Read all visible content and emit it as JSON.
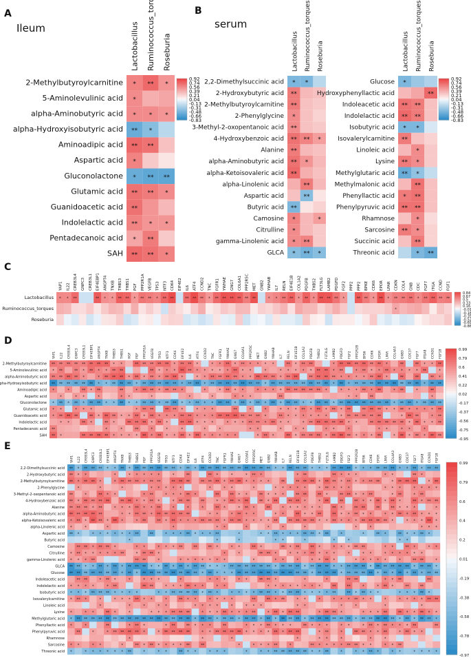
{
  "chart_data": [
    {
      "panel": "A",
      "title": "Ileum",
      "type": "heatmap",
      "columns": [
        "Lactobacillus",
        "Ruminococcus_torques",
        "Roseburia"
      ],
      "rows": [
        "2-Methylbutyroylcarnitine",
        "5-Aminolevulinic acid",
        "alpha-Aminobutyric acid",
        "alpha-Hydroxyisobutyric acid",
        "Aminoadipic acid",
        "Aspartic acid",
        "Gluconolactone",
        "Glutamic acid",
        "Guanidoacetic acid",
        "Indolelactic acid",
        "Pentadecanoic acid",
        "SAH"
      ],
      "values": [
        [
          0.65,
          0.8,
          0.55
        ],
        [
          0.6,
          0.4,
          0.45
        ],
        [
          0.6,
          0.6,
          0.55
        ],
        [
          -0.7,
          -0.55,
          -0.3
        ],
        [
          0.8,
          0.75,
          0.3
        ],
        [
          0.65,
          0.25,
          0.1
        ],
        [
          -0.7,
          -0.75,
          -0.75
        ],
        [
          0.75,
          0.7,
          0.6
        ],
        [
          0.75,
          0.55,
          0.35
        ],
        [
          0.65,
          0.55,
          0.55
        ],
        [
          0.45,
          0.7,
          0.25
        ],
        [
          0.8,
          0.75,
          0.65
        ]
      ],
      "stars": [
        [
          "*",
          "**",
          "*"
        ],
        [
          "*",
          "",
          ""
        ],
        [
          "*",
          "*",
          "*"
        ],
        [
          "**",
          "*",
          ""
        ],
        [
          "**",
          "**",
          ""
        ],
        [
          "*",
          "",
          ""
        ],
        [
          "*",
          "**",
          "**"
        ],
        [
          "**",
          "**",
          "*"
        ],
        [
          "**",
          "",
          ""
        ],
        [
          "**",
          "*",
          "*"
        ],
        [
          "*",
          "**",
          ""
        ],
        [
          "**",
          "**",
          "*"
        ]
      ],
      "colorbar": [
        "0.92",
        "0.74",
        "0.56",
        "0.39",
        "0.21",
        "0.04",
        "-0.13",
        "-0.31",
        "-0.48",
        "-0.66",
        "-0.83"
      ]
    },
    {
      "panel": "B",
      "title": "serum",
      "type": "heatmap",
      "columns": [
        "Lactobacillus",
        "Ruminococcus_torques",
        "Roseburia"
      ],
      "rows": [
        "2,2-Dimethylsuccinic acid",
        "2-Hydroxybutyric acid",
        "2-Methylbutyroylcarnitine",
        "2-Phenylglycine",
        "3-Methyl-2-oxopentanoic acid",
        "4-Hydroxybenzoic acid",
        "Alanine",
        "alpha-Aminobutyric acid",
        "alpha-Ketoisovaleric acid",
        "alpha-Linolenic acid",
        "Aspartic acid",
        "Butyric acid",
        "Camosine",
        "Citrulline",
        "gamma-Linolenic acid",
        "GLCA"
      ],
      "values": [
        [
          -0.6,
          -0.6,
          -0.3
        ],
        [
          0.7,
          0.35,
          0.3
        ],
        [
          0.7,
          0.3,
          0.25
        ],
        [
          0.6,
          0.3,
          0.2
        ],
        [
          0.6,
          0.3,
          0.25
        ],
        [
          0.75,
          0.65,
          0.5
        ],
        [
          0.7,
          0.35,
          0.3
        ],
        [
          0.75,
          0.55,
          0.35
        ],
        [
          0.8,
          0.4,
          0.3
        ],
        [
          0.4,
          0.7,
          0.35
        ],
        [
          0.3,
          -0.55,
          0.1
        ],
        [
          -0.6,
          0.1,
          0.2
        ],
        [
          0.65,
          0.35,
          0.5
        ],
        [
          0.6,
          0.35,
          0.25
        ],
        [
          0.6,
          0.65,
          0.25
        ],
        [
          -0.55,
          -0.65,
          -0.55
        ]
      ],
      "stars": [
        [
          "*",
          "*",
          ""
        ],
        [
          "**",
          "",
          ""
        ],
        [
          "**",
          "",
          ""
        ],
        [
          "*",
          "",
          ""
        ],
        [
          "**",
          "",
          ""
        ],
        [
          "**",
          "**",
          "*"
        ],
        [
          "**",
          "",
          ""
        ],
        [
          "**",
          "*",
          ""
        ],
        [
          "**",
          "",
          ""
        ],
        [
          "",
          "**",
          ""
        ],
        [
          "",
          "**",
          ""
        ],
        [
          "**",
          "",
          ""
        ],
        [
          "*",
          "",
          "*"
        ],
        [
          "*",
          "",
          ""
        ],
        [
          "*",
          "**",
          ""
        ],
        [
          "*",
          "**",
          "*"
        ]
      ]
    },
    {
      "panel": "B2",
      "type": "heatmap",
      "columns": [
        "Lactobacillus",
        "Ruminococcus_torques",
        "Roseburia"
      ],
      "rows": [
        "Glucose",
        "Hydroxyphenyllactic acid",
        "Indoleacetic acid",
        "Indolelactic acid",
        "Isobutyric acid",
        "Isovalerylcarnitine",
        "Linoleic acid",
        "Lysine",
        "Methylglutaric acid",
        "Methylmalonic acid",
        "Phenyllactic acid",
        "Phenylpyruvic acid",
        "Rhamnose",
        "Sarcosine",
        "Succinic acid",
        "Threonic acid"
      ],
      "values": [
        [
          -0.6,
          -0.45,
          -0.35
        ],
        [
          0.35,
          0.45,
          0.8
        ],
        [
          0.75,
          0.7,
          0.3
        ],
        [
          0.8,
          0.7,
          0.3
        ],
        [
          -0.6,
          -0.6,
          -0.15
        ],
        [
          0.7,
          0.3,
          0.2
        ],
        [
          0.35,
          0.6,
          0.25
        ],
        [
          0.7,
          0.6,
          0.25
        ],
        [
          -0.7,
          -0.5,
          -0.25
        ],
        [
          0.35,
          0.75,
          0.3
        ],
        [
          0.7,
          0.75,
          0.3
        ],
        [
          0.75,
          0.75,
          0.3
        ],
        [
          0.3,
          0.6,
          0.15
        ],
        [
          0.7,
          0.6,
          0.2
        ],
        [
          0.3,
          0.7,
          0.2
        ],
        [
          -0.3,
          -0.6,
          -0.7
        ]
      ],
      "stars": [
        [
          "*",
          "",
          ""
        ],
        [
          "",
          "",
          "**"
        ],
        [
          "**",
          "**",
          ""
        ],
        [
          "**",
          "**",
          ""
        ],
        [
          "*",
          "*",
          ""
        ],
        [
          "**",
          "",
          ""
        ],
        [
          "",
          "*",
          ""
        ],
        [
          "**",
          "*",
          ""
        ],
        [
          "**",
          "*",
          ""
        ],
        [
          "",
          "**",
          ""
        ],
        [
          "*",
          "**",
          ""
        ],
        [
          "**",
          "**",
          ""
        ],
        [
          "",
          "*",
          ""
        ],
        [
          "**",
          "*",
          ""
        ],
        [
          "",
          "**",
          ""
        ],
        [
          "",
          "*",
          "**"
        ]
      ],
      "colorbar": [
        "0.92",
        "0.74",
        "0.56",
        "0.39",
        "0.21",
        "0.04",
        "-0.13",
        "-0.31",
        "-0.48",
        "-0.66",
        "-0.83"
      ]
    },
    {
      "panel": "C",
      "type": "heatmap",
      "rows": [
        "Lactobacillus",
        "Ruminococcus_torques",
        "Roseburia"
      ],
      "columns": [
        "YAP1",
        "IL22",
        "CREB3L4",
        "GNPC3",
        "CREB3L1",
        "EIF4EBP1",
        "ANGPT4",
        "TNXB",
        "THBS3",
        "THBS1",
        "PGF",
        "PPP2R1A",
        "VEGFB",
        "TP53",
        "NTF3",
        "CDK4",
        "EIF4E2",
        "IL6",
        "ATF4",
        "CCND2",
        "TNC",
        "FGFR1",
        "YWHAE",
        "GNG7",
        "COL6A1",
        "PPP2R5C",
        "MET",
        "GNB2",
        "YWHAB",
        "IL7",
        "RELN",
        "EIF4E1B",
        "COL1A2",
        "PDGFB",
        "THBS2",
        "FLT3LG",
        "LAMB2",
        "PDGFD",
        "FGF2",
        "PPP2",
        "PPP2",
        "BPKE",
        "CDK6",
        "EPOR",
        "LPAR",
        "CDKN",
        "COL4",
        "GNB",
        "CDC",
        "FGF7",
        "ITGA",
        "CCND",
        "FGF1"
      ],
      "colorbar": [
        "0.84",
        "0.67",
        "0.5",
        "0.33",
        "0.16",
        "-0.01",
        "-0.18",
        "-0.35",
        "-0.52",
        "-0.69",
        "-0.86"
      ]
    },
    {
      "panel": "D",
      "type": "heatmap",
      "rows": [
        "2-Methylbutyroylcarnitine",
        "5-Aminolevulinic acid",
        "alpha-Aminobutyric acid",
        "alpha-Hydroxyisobutyric acid",
        "Aminoadipic acid",
        "Aspartic acid",
        "Gluconolactone",
        "Glutamic acid",
        "Guanidoacetic acid",
        "Indolelactic acid",
        "Pentadecanoic acid",
        "SAH"
      ],
      "columns": [
        "YAP1",
        "IL22",
        "CREB3L4",
        "GNPC3",
        "CREB3L1",
        "EIF4EBP1",
        "ANGPT4",
        "TNXB",
        "THBS3",
        "THBS1",
        "HGF",
        "PGF",
        "PPP2R1A",
        "VEGFB",
        "TP53",
        "NTF3",
        "CDK4",
        "EIF4E2",
        "IL6",
        "ATF4",
        "CCND2",
        "TNC",
        "FGFR1",
        "YWHAE",
        "GNG7",
        "COL6A1",
        "PPP2R5C",
        "MET",
        "GNB2",
        "YWHAB",
        "IL7",
        "RELN",
        "EIF4E1B",
        "COL1A2",
        "PDGFB",
        "THBS2",
        "FLT3LG",
        "LAMB2",
        "PDGFD",
        "FGF2",
        "PPP2R2B",
        "BPS6",
        "CDK6",
        "EPOR",
        "LPAR",
        "COL4A3",
        "GNB3",
        "CDC37",
        "FGF7",
        "ITGA8",
        "CCND1",
        "FGF18"
      ],
      "colorbar": [
        "0.99",
        "0.79",
        "0.6",
        "0.41",
        "0.22",
        "0.02",
        "-0.17",
        "-0.37",
        "-0.56",
        "-0.75",
        "-0.95"
      ]
    },
    {
      "panel": "E",
      "type": "heatmap",
      "rows": [
        "2,2-Dimethylsuccinic acid",
        "2-Hydroxybutyric acid",
        "2-Methylbutyroylcarnitine",
        "2-Phenylglycine",
        "3-Methyl-2-oxopentanoic acid",
        "4-Hydroxybenzoic acid",
        "Alanine",
        "alpha-Aminobutyric acid",
        "alpha-Ketoisovaleric acid",
        "alpha-Linolenic acid",
        "Aspartic acid",
        "Butyric acid",
        "Camosine",
        "Citrulline",
        "gamma-Linolenic acid",
        "GLCA",
        "Glucose",
        "Indoleacetic acid",
        "Indolelactic acid",
        "Isobutyric acid",
        "Isovalerylcarnitine",
        "Linoleic acid",
        "Lysine",
        "Methylglutaric acid",
        "Phenyllactic acid",
        "Phenylpyruvic acid",
        "Rhamnose",
        "Sarcosine",
        "Threonic acid"
      ],
      "columns": [
        "YAP1",
        "IL22",
        "CREB3L4",
        "GNPC3",
        "CREB3L1",
        "EIF4EBP1",
        "ANGPT4",
        "TNXB",
        "THBS3",
        "THBS1",
        "PGF",
        "PPP2R1A",
        "VEGFB",
        "TP53",
        "NTF3",
        "CDK4",
        "EIF4E2",
        "IL6",
        "ATF4",
        "CCND2",
        "TNC",
        "FGFR1",
        "YWHAE",
        "GNG7",
        "COL6A1",
        "PPP2R5C",
        "MET",
        "GNB2",
        "YWHAB",
        "IL7",
        "RELN",
        "EIF4E1B",
        "COL1A2",
        "PDGFB",
        "THBS2",
        "FLT3LG",
        "LAMB2",
        "PDGFD",
        "FGF2",
        "PPP2R2B",
        "BPS6",
        "CDK6",
        "EPOR",
        "LPAR",
        "COL4A3",
        "GNB3",
        "CDC37",
        "FGF7",
        "ITGA8",
        "CCND1",
        "FGF18"
      ],
      "colorbar": [
        "0.99",
        "0.79",
        "0.6",
        "0.4",
        "0.2",
        "0.01",
        "-0.19",
        "-0.38",
        "-0.58",
        "-0.78",
        "-0.97"
      ]
    }
  ]
}
